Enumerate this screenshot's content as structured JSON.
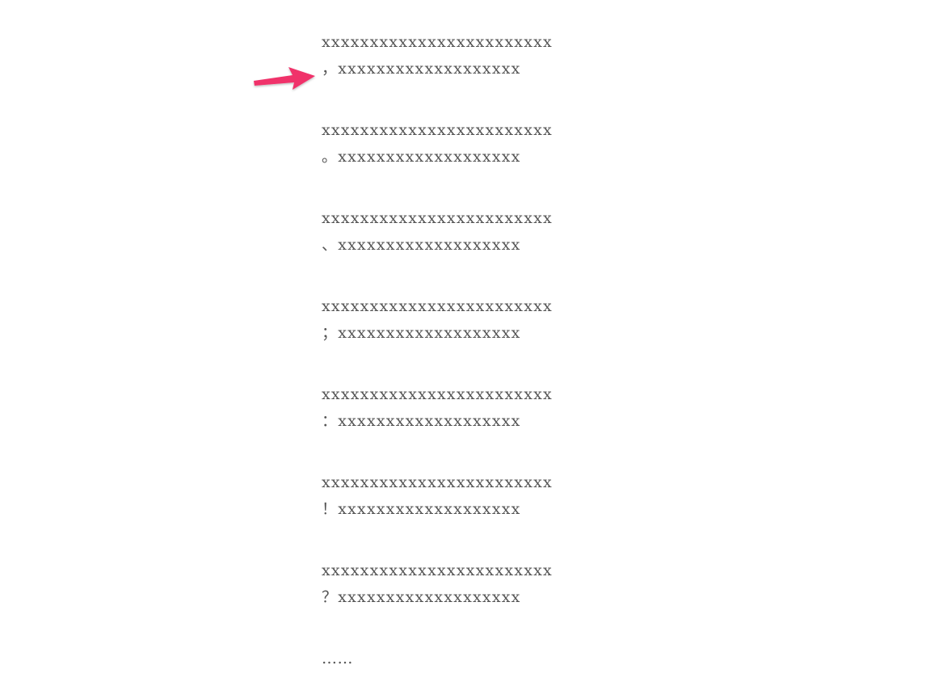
{
  "annotation": {
    "icon": "arrow-right-icon",
    "color": "#f0336b"
  },
  "paragraphs": [
    {
      "line1": "xxxxxxxxxxxxxxxxxxxxxxxx",
      "line2": "，xxxxxxxxxxxxxxxxxxx"
    },
    {
      "line1": "xxxxxxxxxxxxxxxxxxxxxxxx",
      "line2": "。xxxxxxxxxxxxxxxxxxx"
    },
    {
      "line1": "xxxxxxxxxxxxxxxxxxxxxxxx",
      "line2": "、xxxxxxxxxxxxxxxxxxx"
    },
    {
      "line1": "xxxxxxxxxxxxxxxxxxxxxxxx",
      "line2": "；xxxxxxxxxxxxxxxxxxx"
    },
    {
      "line1": "xxxxxxxxxxxxxxxxxxxxxxxx",
      "line2": "：xxxxxxxxxxxxxxxxxxx"
    },
    {
      "line1": "xxxxxxxxxxxxxxxxxxxxxxxx",
      "line2": "！xxxxxxxxxxxxxxxxxxx"
    },
    {
      "line1": "xxxxxxxxxxxxxxxxxxxxxxxx",
      "line2": "？xxxxxxxxxxxxxxxxxxx"
    }
  ],
  "ending": "……"
}
